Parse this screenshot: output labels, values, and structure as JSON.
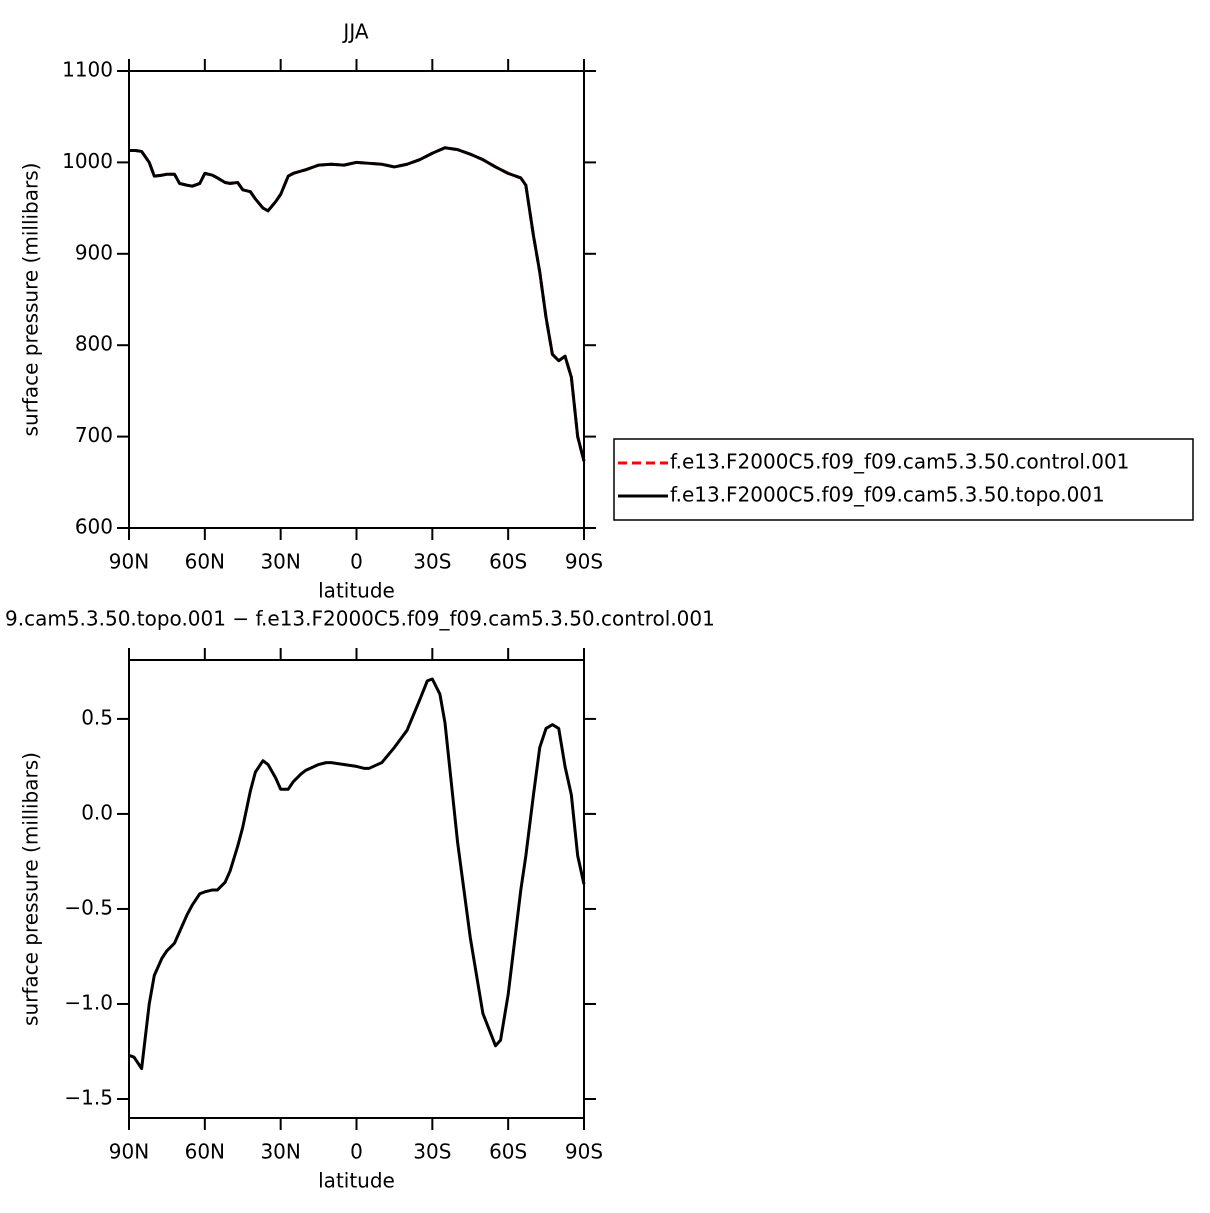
{
  "chart_data": [
    {
      "type": "line",
      "title": "JJA",
      "x_label": "latitude",
      "y_label": "surface pressure (millibars)",
      "x": [
        90,
        87.5,
        85,
        82,
        80,
        77,
        75,
        72,
        70,
        67,
        65,
        62,
        60,
        57,
        55,
        52,
        50,
        47,
        45,
        42,
        40,
        37,
        35,
        32,
        30,
        27,
        25,
        20,
        15,
        10,
        5,
        0,
        -5,
        -10,
        -15,
        -20,
        -25,
        -30,
        -35,
        -40,
        -45,
        -50,
        -55,
        -60,
        -65,
        -67,
        -70,
        -72.5,
        -75,
        -77.5,
        -80,
        -82.5,
        -85,
        -87.5,
        -90
      ],
      "series": [
        {
          "name": "f.e13.F2000C5.f09_f09.cam5.3.50.control.001",
          "color": "#ff0000",
          "dashed": true,
          "values": [
            1013,
            1013,
            1012,
            1000,
            985,
            986,
            987,
            987,
            977,
            975,
            974,
            977,
            988,
            986,
            983,
            978,
            977,
            978,
            970,
            968,
            960,
            950,
            947,
            957,
            965,
            985,
            988,
            992,
            997,
            998,
            997,
            1000,
            999,
            998,
            995,
            998,
            1003,
            1010,
            1016,
            1014,
            1009,
            1003,
            995,
            988,
            983,
            975,
            920,
            880,
            830,
            790,
            783,
            788,
            765,
            700,
            673
          ]
        },
        {
          "name": "f.e13.F2000C5.f09_f09.cam5.3.50.topo.001",
          "color": "#000000",
          "dashed": false,
          "values": [
            1013,
            1013,
            1012,
            1000,
            985,
            986,
            987,
            987,
            977,
            975,
            974,
            977,
            988,
            986,
            983,
            978,
            977,
            978,
            970,
            968,
            960,
            950,
            947,
            957,
            965,
            985,
            988,
            992,
            997,
            998,
            997,
            1000,
            999,
            998,
            995,
            998,
            1003,
            1010,
            1016,
            1014,
            1009,
            1003,
            995,
            988,
            983,
            975,
            920,
            880,
            830,
            790,
            783,
            788,
            765,
            700,
            673
          ]
        }
      ],
      "xlim": [
        90,
        -90
      ],
      "xticks": [
        {
          "value": 90,
          "label": "90N"
        },
        {
          "value": 60,
          "label": "60N"
        },
        {
          "value": 30,
          "label": "30N"
        },
        0,
        {
          "value": -30,
          "label": "30S"
        },
        {
          "value": -60,
          "label": "60S"
        },
        {
          "value": -90,
          "label": "90S"
        }
      ],
      "ylim": [
        600,
        1100
      ],
      "yticks": [
        600,
        700,
        800,
        900,
        1000,
        1100
      ],
      "legend": "right"
    },
    {
      "type": "line",
      "title": "9.cam5.3.50.topo.001 − f.e13.F2000C5.f09_f09.cam5.3.50.control.001",
      "x_label": "latitude",
      "y_label": "surface pressure (millibars)",
      "x": [
        90,
        88,
        85,
        82,
        80,
        77,
        75,
        72,
        70,
        67,
        65,
        62,
        60,
        57,
        55,
        52,
        50,
        47,
        45,
        42,
        40,
        37,
        35,
        32,
        30,
        27,
        25,
        22,
        20,
        15,
        12,
        10,
        5,
        0,
        -3,
        -5,
        -10,
        -15,
        -20,
        -25,
        -28,
        -30,
        -33,
        -35,
        -40,
        -45,
        -50,
        -55,
        -57,
        -60,
        -65,
        -67,
        -70,
        -72.5,
        -75,
        -77.5,
        -80,
        -82.5,
        -85,
        -87.5,
        -90
      ],
      "series": [
        {
          "color": "#000000",
          "dashed": false,
          "values": [
            -1.27,
            -1.28,
            -1.34,
            -1.0,
            -0.85,
            -0.76,
            -0.72,
            -0.68,
            -0.62,
            -0.53,
            -0.48,
            -0.42,
            -0.41,
            -0.4,
            -0.4,
            -0.36,
            -0.3,
            -0.17,
            -0.07,
            0.12,
            0.22,
            0.28,
            0.26,
            0.19,
            0.13,
            0.13,
            0.17,
            0.21,
            0.23,
            0.26,
            0.27,
            0.27,
            0.26,
            0.25,
            0.24,
            0.24,
            0.27,
            0.35,
            0.44,
            0.6,
            0.7,
            0.71,
            0.63,
            0.48,
            -0.15,
            -0.65,
            -1.05,
            -1.22,
            -1.19,
            -0.95,
            -0.4,
            -0.22,
            0.1,
            0.35,
            0.45,
            0.47,
            0.45,
            0.25,
            0.1,
            -0.22,
            -0.37
          ]
        }
      ],
      "xlim": [
        90,
        -90
      ],
      "xticks": [
        {
          "value": 90,
          "label": "90N"
        },
        {
          "value": 60,
          "label": "60N"
        },
        {
          "value": 30,
          "label": "30N"
        },
        0,
        {
          "value": -30,
          "label": "30S"
        },
        {
          "value": -60,
          "label": "60S"
        },
        {
          "value": -90,
          "label": "90S"
        }
      ],
      "ylim": [
        -1.6,
        0.81
      ],
      "yticks": [
        {
          "value": -1.5,
          "label": "−1.5"
        },
        {
          "value": -1.0,
          "label": "−1.0"
        },
        {
          "value": -0.5,
          "label": "−0.5"
        },
        {
          "value": 0,
          "label": "0.0"
        },
        0.5
      ]
    }
  ]
}
